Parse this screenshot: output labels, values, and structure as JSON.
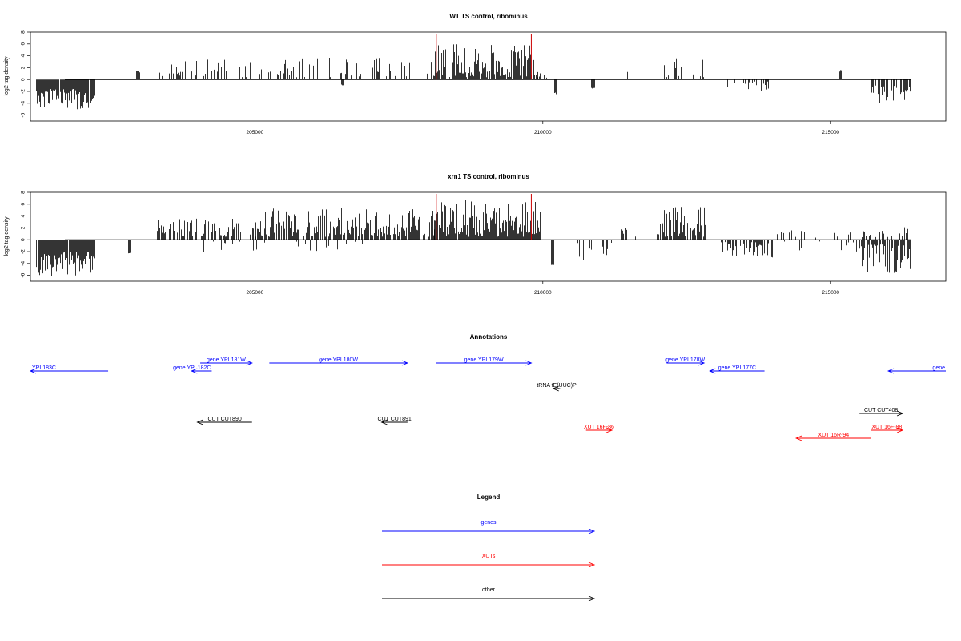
{
  "chart_data": [
    {
      "type": "bar",
      "title": "WT TS control, ribominus",
      "xlabel": "",
      "ylabel": "log2 tag density",
      "xlim": [
        201100,
        217000
      ],
      "ylim": [
        -7,
        8
      ],
      "y_ticks": [
        8,
        6,
        4,
        2,
        0,
        -2,
        -4,
        -6
      ],
      "x_ticks": [
        205000,
        210000,
        215000
      ],
      "x_tick_labels": [
        "205000",
        "210000",
        "215000"
      ],
      "markers": [
        208150,
        209800
      ],
      "marker_color": "#cc0000",
      "bar_color": "#000000",
      "profile": [
        {
          "start": 201200,
          "end": 202200,
          "sign": -1,
          "min": 1.6,
          "max": 5.2,
          "density": 0.9
        },
        {
          "start": 202950,
          "end": 202990,
          "sign": 1,
          "min": 1.2,
          "max": 1.6,
          "density": 1.0
        },
        {
          "start": 203300,
          "end": 206600,
          "sign": 1,
          "min": 0.4,
          "max": 3.7,
          "density": 0.32
        },
        {
          "start": 206500,
          "end": 206520,
          "sign": -1,
          "min": 0.8,
          "max": 1.1,
          "density": 1.0
        },
        {
          "start": 206600,
          "end": 208100,
          "sign": 1,
          "min": 0.4,
          "max": 3.8,
          "density": 0.35
        },
        {
          "start": 208100,
          "end": 209900,
          "sign": 1,
          "min": 0.4,
          "max": 6.0,
          "density": 0.85
        },
        {
          "start": 209900,
          "end": 210050,
          "sign": 1,
          "min": 0.3,
          "max": 1.2,
          "density": 0.5
        },
        {
          "start": 210200,
          "end": 210230,
          "sign": -1,
          "min": 2.2,
          "max": 2.6,
          "density": 1.0
        },
        {
          "start": 210850,
          "end": 210880,
          "sign": -1,
          "min": 1.4,
          "max": 1.7,
          "density": 1.0
        },
        {
          "start": 211350,
          "end": 211450,
          "sign": 1,
          "min": 0.8,
          "max": 1.3,
          "density": 0.6
        },
        {
          "start": 212100,
          "end": 212800,
          "sign": 1,
          "min": 0.4,
          "max": 3.9,
          "density": 0.45
        },
        {
          "start": 213000,
          "end": 213900,
          "sign": -1,
          "min": 0.3,
          "max": 2.1,
          "density": 0.28
        },
        {
          "start": 215150,
          "end": 215180,
          "sign": 1,
          "min": 1.3,
          "max": 1.6,
          "density": 1.0
        },
        {
          "start": 215700,
          "end": 216400,
          "sign": -1,
          "min": 1.0,
          "max": 4.0,
          "density": 0.75
        }
      ]
    },
    {
      "type": "bar",
      "title": "xrn1 TS control, ribominus",
      "xlabel": "",
      "ylabel": "log2 tag density",
      "xlim": [
        201100,
        217000
      ],
      "ylim": [
        -7,
        8
      ],
      "y_ticks": [
        8,
        6,
        4,
        2,
        0,
        -2,
        -4,
        -6
      ],
      "x_ticks": [
        205000,
        210000,
        215000
      ],
      "x_tick_labels": [
        "205000",
        "210000",
        "215000"
      ],
      "markers": [
        208150,
        209800
      ],
      "marker_color": "#cc0000",
      "bar_color": "#000000",
      "profile": [
        {
          "start": 201200,
          "end": 202200,
          "sign": -1,
          "min": 2.0,
          "max": 6.2,
          "density": 0.95
        },
        {
          "start": 202800,
          "end": 202830,
          "sign": -1,
          "min": 2.2,
          "max": 2.5,
          "density": 1.0
        },
        {
          "start": 203300,
          "end": 205000,
          "sign": 1,
          "min": 0.5,
          "max": 3.6,
          "density": 0.6
        },
        {
          "start": 204000,
          "end": 207000,
          "sign": -1,
          "min": 0.3,
          "max": 2.1,
          "density": 0.08
        },
        {
          "start": 205000,
          "end": 208100,
          "sign": 1,
          "min": 0.5,
          "max": 5.5,
          "density": 0.7
        },
        {
          "start": 208100,
          "end": 209950,
          "sign": 1,
          "min": 0.5,
          "max": 6.8,
          "density": 0.95
        },
        {
          "start": 210150,
          "end": 210180,
          "sign": -1,
          "min": 4.2,
          "max": 4.6,
          "density": 1.0
        },
        {
          "start": 210600,
          "end": 211200,
          "sign": -1,
          "min": 0.5,
          "max": 3.4,
          "density": 0.3
        },
        {
          "start": 211350,
          "end": 211600,
          "sign": 1,
          "min": 0.5,
          "max": 2.6,
          "density": 0.5
        },
        {
          "start": 212000,
          "end": 212800,
          "sign": 1,
          "min": 0.5,
          "max": 5.8,
          "density": 0.75
        },
        {
          "start": 213100,
          "end": 214000,
          "sign": -1,
          "min": 0.4,
          "max": 3.0,
          "density": 0.65
        },
        {
          "start": 214000,
          "end": 215500,
          "sign": 1,
          "min": 0.3,
          "max": 2.0,
          "density": 0.18
        },
        {
          "start": 214000,
          "end": 215500,
          "sign": -1,
          "min": 0.3,
          "max": 2.6,
          "density": 0.12
        },
        {
          "start": 215500,
          "end": 216400,
          "sign": -1,
          "min": 0.8,
          "max": 5.8,
          "density": 0.8
        },
        {
          "start": 215500,
          "end": 216400,
          "sign": 1,
          "min": 0.4,
          "max": 2.5,
          "density": 0.3
        }
      ]
    }
  ],
  "annotations": {
    "title": "Annotations",
    "features": [
      {
        "label": "YPL183C",
        "start": 201100,
        "end": 202450,
        "strand": "-",
        "kind": "gene",
        "row": 1,
        "label_anchor": "start"
      },
      {
        "label": "gene YPL182C",
        "start": 203900,
        "end": 204250,
        "strand": "-",
        "kind": "gene",
        "row": 1,
        "label_anchor": "end"
      },
      {
        "label": "gene YPL181W",
        "start": 204050,
        "end": 204950,
        "strand": "+",
        "kind": "gene",
        "row": 0,
        "label_anchor": "middle"
      },
      {
        "label": "gene YPL180W",
        "start": 205250,
        "end": 207650,
        "strand": "+",
        "kind": "gene",
        "row": 0,
        "label_anchor": "middle"
      },
      {
        "label": "gene YPL179W",
        "start": 208150,
        "end": 209800,
        "strand": "+",
        "kind": "gene",
        "row": 0,
        "label_anchor": "middle"
      },
      {
        "label": "gene YPL178W",
        "start": 212150,
        "end": 212800,
        "strand": "+",
        "kind": "gene",
        "row": 0,
        "label_anchor": "middle"
      },
      {
        "label": "gene YPL177C",
        "start": 212900,
        "end": 213850,
        "strand": "-",
        "kind": "gene",
        "row": 1,
        "label_anchor": "middle"
      },
      {
        "label": "gene",
        "start": 216000,
        "end": 217000,
        "strand": "-",
        "kind": "gene",
        "row": 1,
        "label_anchor": "end"
      },
      {
        "label": "tRNA tE(UUC)P",
        "start": 210180,
        "end": 210300,
        "strand": "-",
        "kind": "other",
        "row": 2,
        "label_anchor": "middle"
      },
      {
        "label": "CUT CUT890",
        "start": 204000,
        "end": 204950,
        "strand": "-",
        "kind": "other",
        "row": 3,
        "label_anchor": "middle"
      },
      {
        "label": "CUT CUT891",
        "start": 207200,
        "end": 207650,
        "strand": "-",
        "kind": "other",
        "row": 3,
        "label_anchor": "middle"
      },
      {
        "label": "XUT 16F-86",
        "start": 210750,
        "end": 211200,
        "strand": "+",
        "kind": "xut",
        "row": 4,
        "label_anchor": "middle"
      },
      {
        "label": "CUT CUT408",
        "start": 215500,
        "end": 216250,
        "strand": "+",
        "kind": "other",
        "row": 5,
        "label_anchor": "middle"
      },
      {
        "label": "XUT 16F-88",
        "start": 215700,
        "end": 216250,
        "strand": "+",
        "kind": "xut",
        "row": 6,
        "label_anchor": "middle"
      },
      {
        "label": "XUT 16R-94",
        "start": 214400,
        "end": 215700,
        "strand": "-",
        "kind": "xut",
        "row": 7,
        "label_anchor": "middle"
      }
    ]
  },
  "legend": {
    "title": "Legend",
    "items": [
      {
        "label": "genes",
        "kind": "gene"
      },
      {
        "label": "XUTs",
        "kind": "xut"
      },
      {
        "label": "other",
        "kind": "other"
      }
    ]
  },
  "colors": {
    "gene": "#0000ff",
    "xut": "#ff0000",
    "other": "#000000",
    "axis": "#000000"
  }
}
